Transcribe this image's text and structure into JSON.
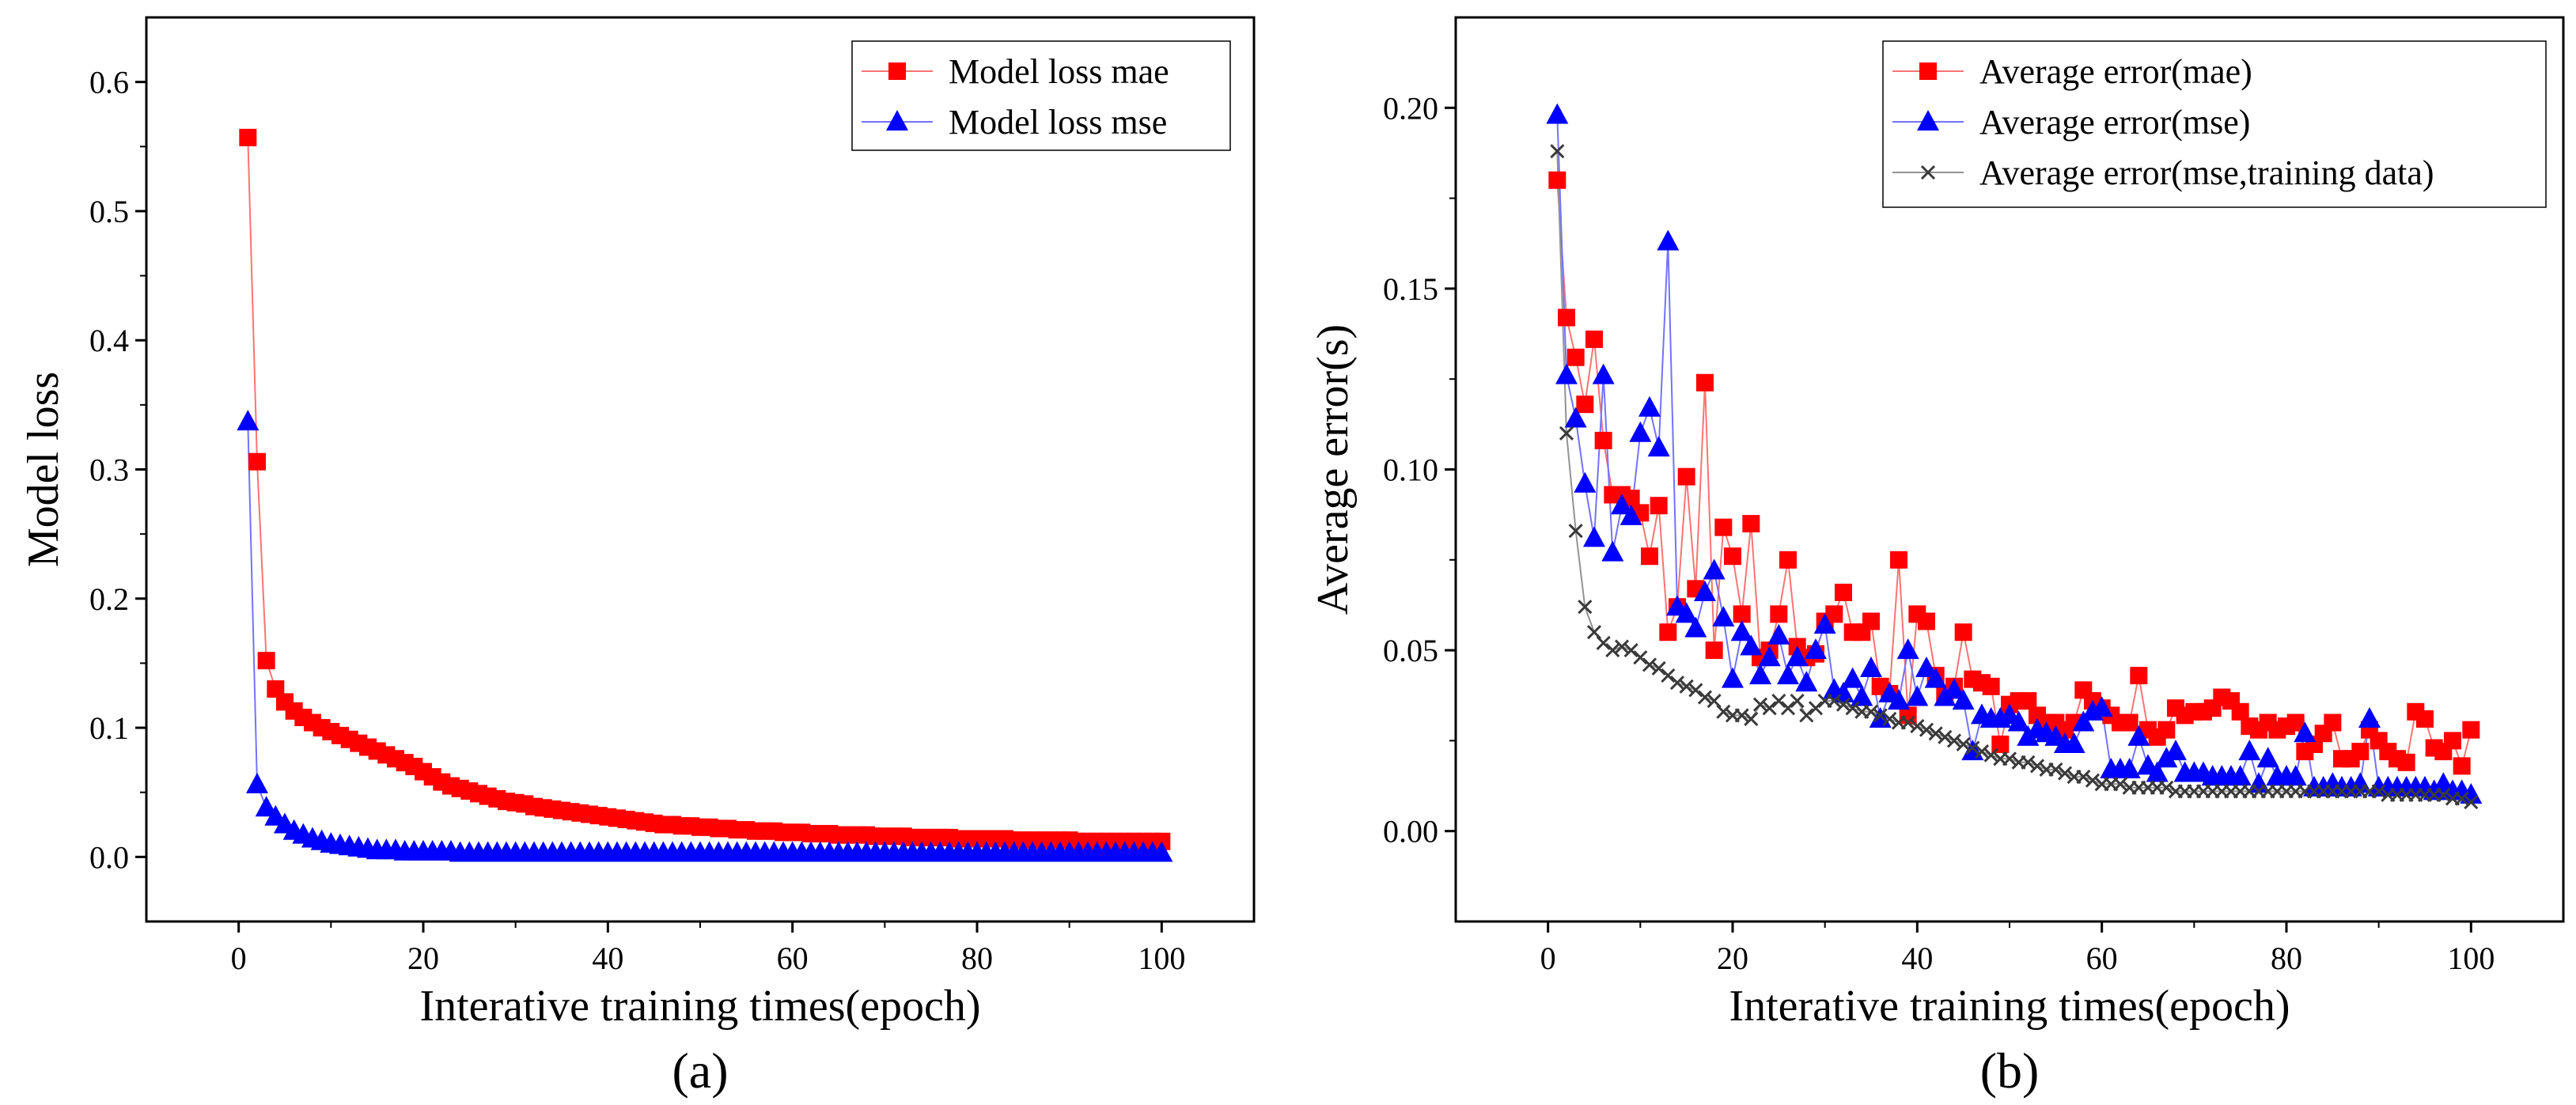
{
  "colors": {
    "mae": "#ff0000",
    "mse": "#0000ff",
    "train": "#3a3a3a",
    "mae_line": "#ff8080",
    "mse_line": "#8080ff"
  },
  "chart_data": [
    {
      "id": "a",
      "type": "line",
      "caption": "(a)",
      "xlabel": "Interative training times(epoch)",
      "ylabel": "Model loss",
      "xlim": [
        -10,
        110
      ],
      "ylim": [
        -0.05,
        0.65
      ],
      "xticks": [
        0,
        20,
        40,
        60,
        80,
        100
      ],
      "yticks": [
        0.0,
        0.1,
        0.2,
        0.3,
        0.4,
        0.5,
        0.6
      ],
      "ytick_labels": [
        "0.0",
        "0.1",
        "0.2",
        "0.3",
        "0.4",
        "0.5",
        "0.6"
      ],
      "legend_position": "top-right",
      "series": [
        {
          "name": "Model loss mae",
          "marker": "square",
          "color": "#ff0000",
          "x_start": 1,
          "values": [
            0.557,
            0.306,
            0.152,
            0.13,
            0.12,
            0.113,
            0.108,
            0.104,
            0.1,
            0.097,
            0.094,
            0.091,
            0.088,
            0.085,
            0.082,
            0.079,
            0.076,
            0.073,
            0.07,
            0.066,
            0.062,
            0.058,
            0.055,
            0.053,
            0.051,
            0.049,
            0.047,
            0.045,
            0.043,
            0.042,
            0.041,
            0.039,
            0.038,
            0.037,
            0.036,
            0.035,
            0.034,
            0.033,
            0.032,
            0.031,
            0.03,
            0.029,
            0.028,
            0.027,
            0.026,
            0.025,
            0.025,
            0.024,
            0.024,
            0.023,
            0.023,
            0.022,
            0.022,
            0.021,
            0.021,
            0.02,
            0.02,
            0.02,
            0.019,
            0.019,
            0.019,
            0.018,
            0.018,
            0.018,
            0.017,
            0.017,
            0.017,
            0.017,
            0.016,
            0.016,
            0.016,
            0.016,
            0.015,
            0.015,
            0.015,
            0.015,
            0.015,
            0.014,
            0.014,
            0.014,
            0.014,
            0.014,
            0.014,
            0.013,
            0.013,
            0.013,
            0.013,
            0.013,
            0.013,
            0.013,
            0.012,
            0.012,
            0.012,
            0.012,
            0.012,
            0.012,
            0.012,
            0.012,
            0.012,
            0.012
          ]
        },
        {
          "name": "Model loss mse",
          "marker": "triangle",
          "color": "#0000ff",
          "x_start": 1,
          "values": [
            0.337,
            0.056,
            0.038,
            0.031,
            0.025,
            0.02,
            0.017,
            0.014,
            0.012,
            0.01,
            0.009,
            0.008,
            0.007,
            0.006,
            0.005,
            0.005,
            0.005,
            0.004,
            0.004,
            0.004,
            0.004,
            0.004,
            0.004,
            0.003,
            0.003,
            0.003,
            0.003,
            0.003,
            0.003,
            0.003,
            0.003,
            0.003,
            0.003,
            0.003,
            0.003,
            0.003,
            0.003,
            0.003,
            0.003,
            0.003,
            0.003,
            0.003,
            0.003,
            0.003,
            0.003,
            0.003,
            0.003,
            0.003,
            0.003,
            0.003,
            0.003,
            0.003,
            0.003,
            0.003,
            0.003,
            0.003,
            0.003,
            0.003,
            0.003,
            0.003,
            0.003,
            0.003,
            0.003,
            0.003,
            0.003,
            0.003,
            0.003,
            0.003,
            0.003,
            0.003,
            0.003,
            0.003,
            0.003,
            0.003,
            0.003,
            0.003,
            0.003,
            0.003,
            0.003,
            0.003,
            0.003,
            0.003,
            0.003,
            0.003,
            0.003,
            0.003,
            0.003,
            0.003,
            0.003,
            0.003,
            0.003,
            0.003,
            0.003,
            0.003,
            0.003,
            0.003,
            0.003,
            0.003,
            0.003,
            0.003
          ]
        }
      ]
    },
    {
      "id": "b",
      "type": "line",
      "caption": "(b)",
      "xlabel": "Interative training times(epoch)",
      "ylabel": "Average error(s)",
      "xlim": [
        -10,
        110
      ],
      "ylim": [
        -0.025,
        0.225
      ],
      "xticks": [
        0,
        20,
        40,
        60,
        80,
        100
      ],
      "yticks": [
        0.0,
        0.05,
        0.1,
        0.15,
        0.2
      ],
      "ytick_labels": [
        "0.00",
        "0.05",
        "0.10",
        "0.15",
        "0.20"
      ],
      "legend_position": "top-right",
      "series": [
        {
          "name": "Average error(mae)",
          "marker": "square",
          "color": "#ff0000",
          "x_start": 1,
          "values": [
            0.18,
            0.142,
            0.131,
            0.118,
            0.136,
            0.108,
            0.093,
            0.093,
            0.092,
            0.088,
            0.076,
            0.09,
            0.055,
            0.062,
            0.098,
            0.067,
            0.124,
            0.05,
            0.084,
            0.076,
            0.06,
            0.085,
            0.048,
            0.05,
            0.06,
            0.075,
            0.051,
            0.048,
            0.049,
            0.058,
            0.06,
            0.066,
            0.055,
            0.055,
            0.058,
            0.04,
            0.038,
            0.075,
            0.032,
            0.06,
            0.058,
            0.043,
            0.038,
            0.04,
            0.055,
            0.042,
            0.041,
            0.04,
            0.024,
            0.035,
            0.036,
            0.036,
            0.032,
            0.03,
            0.03,
            0.028,
            0.03,
            0.039,
            0.036,
            0.034,
            0.032,
            0.03,
            0.03,
            0.043,
            0.028,
            0.026,
            0.028,
            0.034,
            0.032,
            0.033,
            0.033,
            0.034,
            0.037,
            0.036,
            0.033,
            0.029,
            0.028,
            0.03,
            0.028,
            0.029,
            0.03,
            0.022,
            0.024,
            0.027,
            0.03,
            0.02,
            0.02,
            0.022,
            0.028,
            0.025,
            0.022,
            0.02,
            0.019,
            0.033,
            0.031,
            0.023,
            0.022,
            0.025,
            0.018,
            0.028
          ]
        },
        {
          "name": "Average error(mse)",
          "marker": "triangle",
          "color": "#0000ff",
          "x_start": 1,
          "values": [
            0.198,
            0.126,
            0.114,
            0.096,
            0.081,
            0.126,
            0.077,
            0.09,
            0.087,
            0.11,
            0.117,
            0.106,
            0.163,
            0.062,
            0.06,
            0.056,
            0.066,
            0.072,
            0.059,
            0.042,
            0.055,
            0.051,
            0.043,
            0.048,
            0.054,
            0.043,
            0.048,
            0.041,
            0.05,
            0.057,
            0.039,
            0.038,
            0.042,
            0.037,
            0.045,
            0.031,
            0.038,
            0.036,
            0.05,
            0.037,
            0.045,
            0.042,
            0.037,
            0.039,
            0.036,
            0.022,
            0.032,
            0.031,
            0.031,
            0.032,
            0.03,
            0.026,
            0.028,
            0.027,
            0.026,
            0.024,
            0.024,
            0.03,
            0.033,
            0.034,
            0.017,
            0.017,
            0.017,
            0.026,
            0.018,
            0.016,
            0.02,
            0.022,
            0.016,
            0.016,
            0.016,
            0.015,
            0.015,
            0.015,
            0.015,
            0.022,
            0.013,
            0.02,
            0.015,
            0.015,
            0.015,
            0.027,
            0.012,
            0.012,
            0.013,
            0.012,
            0.012,
            0.013,
            0.031,
            0.012,
            0.012,
            0.012,
            0.012,
            0.012,
            0.012,
            0.011,
            0.013,
            0.011,
            0.011,
            0.01
          ]
        },
        {
          "name": "Average error(mse,training data)",
          "marker": "cross",
          "color": "#3a3a3a",
          "x_start": 1,
          "values": [
            0.188,
            0.11,
            0.083,
            0.062,
            0.055,
            0.052,
            0.05,
            0.051,
            0.05,
            0.048,
            0.046,
            0.045,
            0.043,
            0.041,
            0.04,
            0.039,
            0.037,
            0.036,
            0.033,
            0.032,
            0.032,
            0.031,
            0.035,
            0.034,
            0.036,
            0.034,
            0.036,
            0.032,
            0.034,
            0.036,
            0.036,
            0.035,
            0.034,
            0.033,
            0.033,
            0.032,
            0.031,
            0.03,
            0.03,
            0.029,
            0.028,
            0.027,
            0.026,
            0.025,
            0.024,
            0.023,
            0.022,
            0.021,
            0.02,
            0.02,
            0.019,
            0.019,
            0.018,
            0.017,
            0.017,
            0.016,
            0.015,
            0.015,
            0.014,
            0.013,
            0.013,
            0.013,
            0.012,
            0.012,
            0.012,
            0.012,
            0.012,
            0.011,
            0.011,
            0.011,
            0.011,
            0.011,
            0.011,
            0.011,
            0.011,
            0.011,
            0.011,
            0.011,
            0.011,
            0.011,
            0.011,
            0.011,
            0.011,
            0.011,
            0.011,
            0.011,
            0.011,
            0.011,
            0.011,
            0.011,
            0.01,
            0.01,
            0.01,
            0.01,
            0.01,
            0.01,
            0.01,
            0.009,
            0.009,
            0.008
          ]
        }
      ]
    }
  ]
}
